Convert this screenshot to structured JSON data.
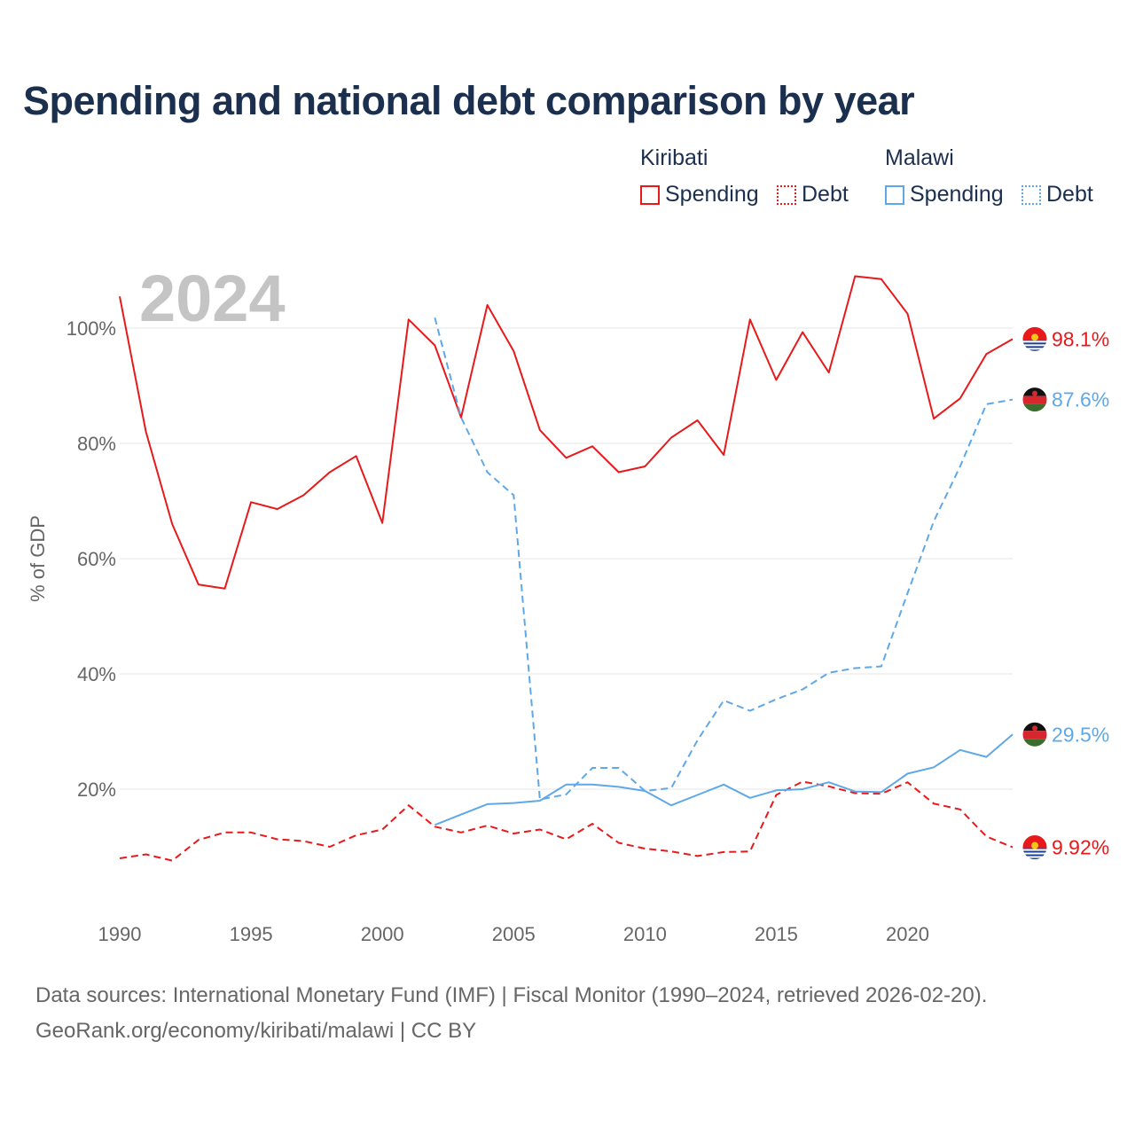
{
  "title": "Spending and national debt comparison by year",
  "legend": {
    "kiribati": {
      "country": "Kiribati",
      "spending": "Spending",
      "debt": "Debt"
    },
    "malawi": {
      "country": "Malawi",
      "spending": "Spending",
      "debt": "Debt"
    }
  },
  "colors": {
    "kiribati": "#e8191b",
    "malawi": "#5fa8e8",
    "title": "#1b2f4e",
    "grid": "#e6e6e6",
    "year_watermark": "#c4c4c4"
  },
  "footer": {
    "source": "Data sources: International Monetary Fund (IMF) | Fiscal Monitor (1990–2024, retrieved 2026-02-20).",
    "credit": "GeoRank.org/economy/kiribati/malawi | CC BY"
  },
  "chart_data": {
    "type": "line",
    "year_label": "2024",
    "ylabel": "% of GDP",
    "xlim": [
      1990,
      2024
    ],
    "ylim": [
      0,
      110
    ],
    "x_ticks": [
      1990,
      1995,
      2000,
      2005,
      2010,
      2015,
      2020
    ],
    "y_ticks": [
      20,
      40,
      60,
      80,
      100
    ],
    "y_tick_labels": [
      "20%",
      "40%",
      "60%",
      "80%",
      "100%"
    ],
    "series": [
      {
        "name": "Kiribati Spending",
        "country": "kiribati",
        "dash": false,
        "end_label": "98.1%",
        "x": [
          1990,
          1991,
          1992,
          1993,
          1994,
          1995,
          1996,
          1997,
          1998,
          1999,
          2000,
          2001,
          2002,
          2003,
          2004,
          2005,
          2006,
          2007,
          2008,
          2009,
          2010,
          2011,
          2012,
          2013,
          2014,
          2015,
          2016,
          2017,
          2018,
          2019,
          2020,
          2021,
          2022,
          2023,
          2024
        ],
        "values": [
          105.5,
          82,
          66,
          55.5,
          54.8,
          69.8,
          68.6,
          71,
          75,
          77.8,
          66.2,
          101.5,
          97,
          84.5,
          104,
          96,
          82.3,
          77.5,
          79.5,
          75,
          76,
          81,
          84,
          78,
          101.5,
          91,
          99.3,
          92.3,
          109,
          108.5,
          102.5,
          84.3,
          87.8,
          95.5,
          98.1
        ]
      },
      {
        "name": "Kiribati Debt",
        "country": "kiribati",
        "dash": true,
        "end_label": "9.92%",
        "x": [
          1990,
          1991,
          1992,
          1993,
          1994,
          1995,
          1996,
          1997,
          1998,
          1999,
          2000,
          2001,
          2002,
          2003,
          2004,
          2005,
          2006,
          2007,
          2008,
          2009,
          2010,
          2011,
          2012,
          2013,
          2014,
          2015,
          2016,
          2017,
          2018,
          2019,
          2020,
          2021,
          2022,
          2023,
          2024
        ],
        "values": [
          8,
          8.7,
          7.6,
          11.2,
          12.5,
          12.5,
          11.3,
          11,
          10,
          12,
          13,
          17.2,
          13.5,
          12.5,
          13.7,
          12.3,
          13,
          11.3,
          14,
          10.7,
          9.7,
          9.2,
          8.4,
          9.1,
          9.2,
          19,
          21.3,
          20.5,
          19.3,
          19.2,
          21.2,
          17.5,
          16.5,
          11.8,
          9.92
        ]
      },
      {
        "name": "Malawi Spending",
        "country": "malawi",
        "dash": false,
        "end_label": "29.5%",
        "x": [
          2002,
          2003,
          2004,
          2005,
          2006,
          2007,
          2008,
          2009,
          2010,
          2011,
          2012,
          2013,
          2014,
          2015,
          2016,
          2017,
          2018,
          2019,
          2020,
          2021,
          2022,
          2023,
          2024
        ],
        "values": [
          13.8,
          15.6,
          17.4,
          17.6,
          18,
          20.8,
          20.8,
          20.4,
          19.7,
          17.2,
          19,
          20.8,
          18.5,
          19.8,
          20,
          21.2,
          19.6,
          19.5,
          22.7,
          23.8,
          26.8,
          25.6,
          29.5
        ]
      },
      {
        "name": "Malawi Debt",
        "country": "malawi",
        "dash": true,
        "end_label": "87.6%",
        "x": [
          2002,
          2003,
          2004,
          2005,
          2006,
          2007,
          2008,
          2009,
          2010,
          2011,
          2012,
          2013,
          2014,
          2015,
          2016,
          2017,
          2018,
          2019,
          2020,
          2021,
          2022,
          2023,
          2024
        ],
        "values": [
          101.8,
          84.5,
          75,
          71,
          18.2,
          19.1,
          23.7,
          23.7,
          19.7,
          20.2,
          28.5,
          35.4,
          33.6,
          35.6,
          37.3,
          40.2,
          41,
          41.3,
          54,
          66.5,
          76,
          86.8,
          87.6
        ]
      }
    ]
  }
}
